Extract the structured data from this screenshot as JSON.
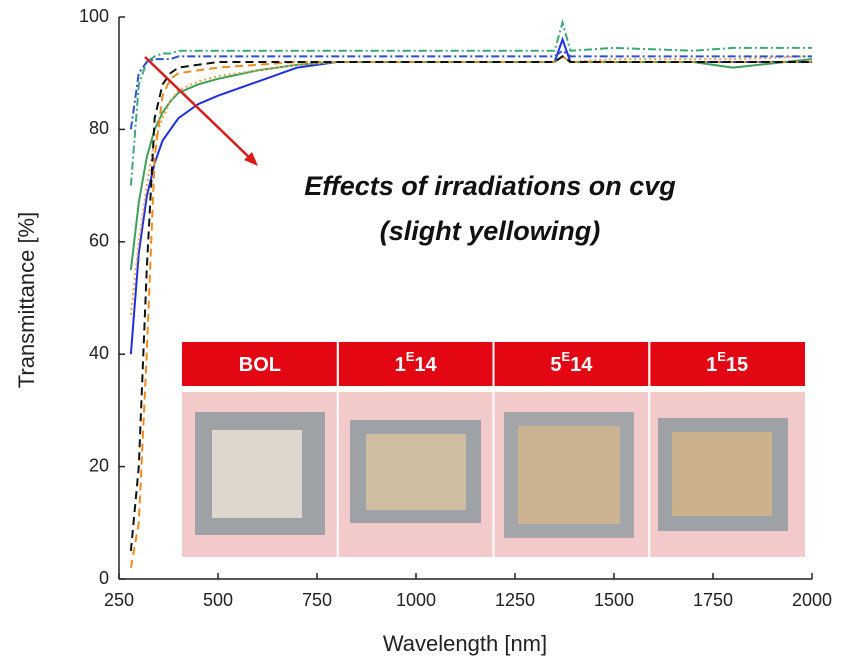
{
  "chart_data": {
    "type": "line",
    "x_label": "Wavelength [nm]",
    "y_label": "Transmittance [%]",
    "xlim": [
      250,
      2000
    ],
    "xticks": [
      250,
      500,
      750,
      1000,
      1250,
      1500,
      1750,
      2000
    ],
    "ylim": [
      0,
      100
    ],
    "yticks": [
      0,
      20,
      40,
      60,
      80,
      100
    ],
    "x": [
      280,
      300,
      320,
      340,
      360,
      380,
      400,
      450,
      500,
      600,
      700,
      800,
      1000,
      1200,
      1350,
      1370,
      1390,
      1500,
      1700,
      1800,
      2000
    ],
    "series": [
      {
        "color": "#1f2fe0",
        "dash": "none",
        "values": [
          40,
          58,
          68,
          74,
          78,
          80,
          82,
          84.5,
          86,
          88.5,
          91,
          92,
          92,
          92,
          92,
          96,
          92,
          92,
          92,
          92,
          92
        ]
      },
      {
        "color": "#3aa05a",
        "dash": "none",
        "values": [
          55,
          67,
          75,
          80,
          83,
          85,
          86.5,
          88,
          89,
          90.5,
          91.5,
          92,
          92,
          92,
          92,
          93,
          92,
          92,
          92,
          91,
          92.5
        ]
      },
      {
        "color": "#f0a040",
        "dash": "2 3",
        "values": [
          47,
          60,
          70,
          78,
          82,
          85,
          87,
          88.5,
          89.5,
          90.5,
          91.5,
          92,
          92,
          92,
          92,
          93,
          92,
          92.5,
          92.5,
          92.5,
          93
        ]
      },
      {
        "color": "#f08a1c",
        "dash": "8 5",
        "values": [
          2,
          10,
          40,
          75,
          86,
          89,
          90,
          90.5,
          91,
          91.5,
          92,
          92,
          92,
          92,
          92,
          93,
          92,
          92,
          92,
          92,
          92
        ]
      },
      {
        "color": "#111111",
        "dash": "8 5",
        "values": [
          5,
          20,
          55,
          82,
          88,
          90,
          91,
          91.5,
          92,
          92,
          92,
          92,
          92,
          92,
          92,
          93,
          92,
          92,
          92,
          92,
          92
        ]
      },
      {
        "color": "#3aa878",
        "dash": "8 3 2 3",
        "values": [
          70,
          88,
          92,
          93,
          93.5,
          93.5,
          94,
          94,
          94,
          94,
          94,
          94,
          94,
          94,
          94,
          99,
          94,
          94.5,
          94,
          94.5,
          94.5
        ]
      },
      {
        "color": "#2b4fd8",
        "dash": "8 3 2 3",
        "values": [
          80,
          90,
          92,
          92.5,
          92.5,
          92.5,
          93,
          93,
          93,
          93,
          93,
          93,
          93,
          93,
          93,
          94,
          93,
          93,
          93,
          93,
          93
        ]
      }
    ],
    "annotation": [
      "Effects of irradiations on cvg",
      "(slight yellowing)"
    ],
    "inset_headers": [
      [
        "BOL"
      ],
      [
        "1",
        "E",
        "14"
      ],
      [
        "5",
        "E",
        "14"
      ],
      [
        "1",
        "E",
        "15"
      ]
    ]
  }
}
